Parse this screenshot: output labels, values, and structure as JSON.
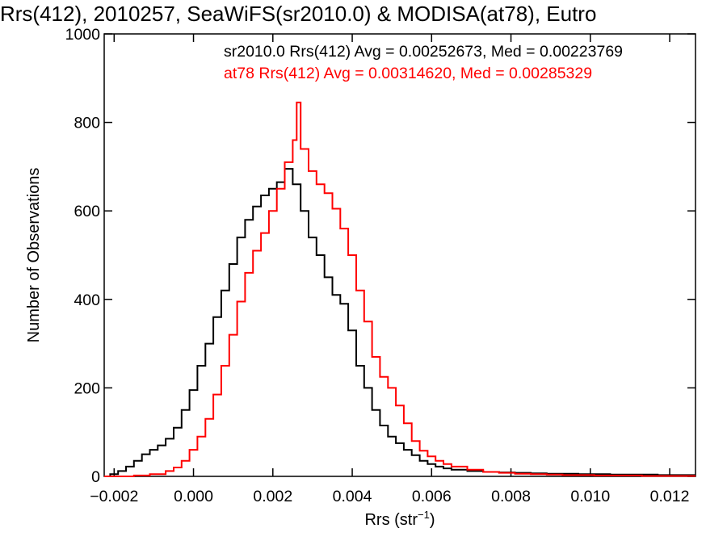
{
  "chart_data": {
    "type": "line",
    "title": "Rrs(412), 2010257, SeaWiFS(sr2010.0) & MODISA(at78), Eutro",
    "xlabel": "Rrs (str",
    "xlabel_sup": "−1",
    "xlabel_close": ")",
    "ylabel": "Number of Observations",
    "xlim": [
      -0.00225,
      0.01265
    ],
    "ylim": [
      0,
      1000
    ],
    "grid": false,
    "legend_position": "top-right",
    "x_ticks": [
      -0.002,
      0.0,
      0.002,
      0.004,
      0.006,
      0.008,
      0.01,
      0.012
    ],
    "x_tick_labels": [
      "−0.002",
      "0.000",
      "0.002",
      "0.004",
      "0.006",
      "0.008",
      "0.010",
      "0.012"
    ],
    "y_ticks": [
      0,
      200,
      400,
      600,
      800,
      1000
    ],
    "y_tick_labels": [
      "0",
      "200",
      "400",
      "600",
      "800",
      "1000"
    ],
    "series": [
      {
        "name": "sr2010.0 Rrs(412) Avg = 0.00252673, Med = 0.00223769",
        "color": "#000000",
        "points": [
          [
            -0.00225,
            0
          ],
          [
            -0.0021,
            5
          ],
          [
            -0.0019,
            12
          ],
          [
            -0.0017,
            22
          ],
          [
            -0.0015,
            35
          ],
          [
            -0.0013,
            50
          ],
          [
            -0.0011,
            60
          ],
          [
            -0.0009,
            70
          ],
          [
            -0.0007,
            85
          ],
          [
            -0.0005,
            110
          ],
          [
            -0.0003,
            150
          ],
          [
            -0.0001,
            195
          ],
          [
            0.0001,
            250
          ],
          [
            0.0003,
            300
          ],
          [
            0.0005,
            360
          ],
          [
            0.0007,
            420
          ],
          [
            0.0009,
            480
          ],
          [
            0.0011,
            540
          ],
          [
            0.0013,
            580
          ],
          [
            0.0015,
            610
          ],
          [
            0.0017,
            635
          ],
          [
            0.0019,
            650
          ],
          [
            0.0021,
            665
          ],
          [
            0.0023,
            695
          ],
          [
            0.0025,
            660
          ],
          [
            0.0027,
            600
          ],
          [
            0.0029,
            540
          ],
          [
            0.0031,
            500
          ],
          [
            0.0033,
            450
          ],
          [
            0.0035,
            410
          ],
          [
            0.0037,
            390
          ],
          [
            0.0039,
            330
          ],
          [
            0.0041,
            250
          ],
          [
            0.0043,
            200
          ],
          [
            0.0045,
            150
          ],
          [
            0.0047,
            115
          ],
          [
            0.0049,
            90
          ],
          [
            0.0051,
            75
          ],
          [
            0.0053,
            60
          ],
          [
            0.0055,
            48
          ],
          [
            0.0057,
            35
          ],
          [
            0.0059,
            28
          ],
          [
            0.0061,
            22
          ],
          [
            0.0063,
            18
          ],
          [
            0.0065,
            15
          ],
          [
            0.0069,
            12
          ],
          [
            0.0073,
            10
          ],
          [
            0.0077,
            9
          ],
          [
            0.0081,
            8
          ],
          [
            0.0085,
            7
          ],
          [
            0.0089,
            6
          ],
          [
            0.0093,
            6
          ],
          [
            0.0097,
            5
          ],
          [
            0.0101,
            5
          ],
          [
            0.0105,
            4
          ],
          [
            0.0109,
            4
          ],
          [
            0.0113,
            4
          ],
          [
            0.0117,
            3
          ],
          [
            0.0121,
            3
          ],
          [
            0.0125,
            3
          ]
        ]
      },
      {
        "name": "at78 Rrs(412) Avg = 0.00314620, Med = 0.00285329",
        "color": "#ff0000",
        "points": [
          [
            -0.00225,
            0
          ],
          [
            -0.0019,
            0
          ],
          [
            -0.0015,
            2
          ],
          [
            -0.0011,
            5
          ],
          [
            -0.0007,
            12
          ],
          [
            -0.0005,
            20
          ],
          [
            -0.0003,
            35
          ],
          [
            -0.0001,
            60
          ],
          [
            0.0001,
            90
          ],
          [
            0.0003,
            130
          ],
          [
            0.0005,
            185
          ],
          [
            0.0007,
            250
          ],
          [
            0.0009,
            320
          ],
          [
            0.0011,
            395
          ],
          [
            0.0013,
            460
          ],
          [
            0.0015,
            510
          ],
          [
            0.0017,
            550
          ],
          [
            0.0019,
            600
          ],
          [
            0.0021,
            650
          ],
          [
            0.0023,
            710
          ],
          [
            0.0025,
            760
          ],
          [
            0.0026,
            845
          ],
          [
            0.0027,
            740
          ],
          [
            0.0029,
            690
          ],
          [
            0.0031,
            660
          ],
          [
            0.0033,
            640
          ],
          [
            0.0035,
            605
          ],
          [
            0.0037,
            560
          ],
          [
            0.0039,
            500
          ],
          [
            0.0041,
            420
          ],
          [
            0.0043,
            350
          ],
          [
            0.0045,
            270
          ],
          [
            0.0047,
            225
          ],
          [
            0.0049,
            200
          ],
          [
            0.0051,
            160
          ],
          [
            0.0053,
            120
          ],
          [
            0.0055,
            80
          ],
          [
            0.0057,
            58
          ],
          [
            0.0059,
            45
          ],
          [
            0.0061,
            35
          ],
          [
            0.0063,
            28
          ],
          [
            0.0065,
            22
          ],
          [
            0.0069,
            15
          ],
          [
            0.0073,
            10
          ],
          [
            0.0077,
            8
          ],
          [
            0.0081,
            6
          ],
          [
            0.0085,
            5
          ],
          [
            0.0089,
            4
          ],
          [
            0.0093,
            3
          ],
          [
            0.0097,
            3
          ],
          [
            0.0101,
            2
          ],
          [
            0.0105,
            2
          ],
          [
            0.0109,
            2
          ],
          [
            0.0113,
            1
          ],
          [
            0.0117,
            1
          ],
          [
            0.0121,
            1
          ],
          [
            0.0125,
            1
          ]
        ]
      }
    ]
  }
}
